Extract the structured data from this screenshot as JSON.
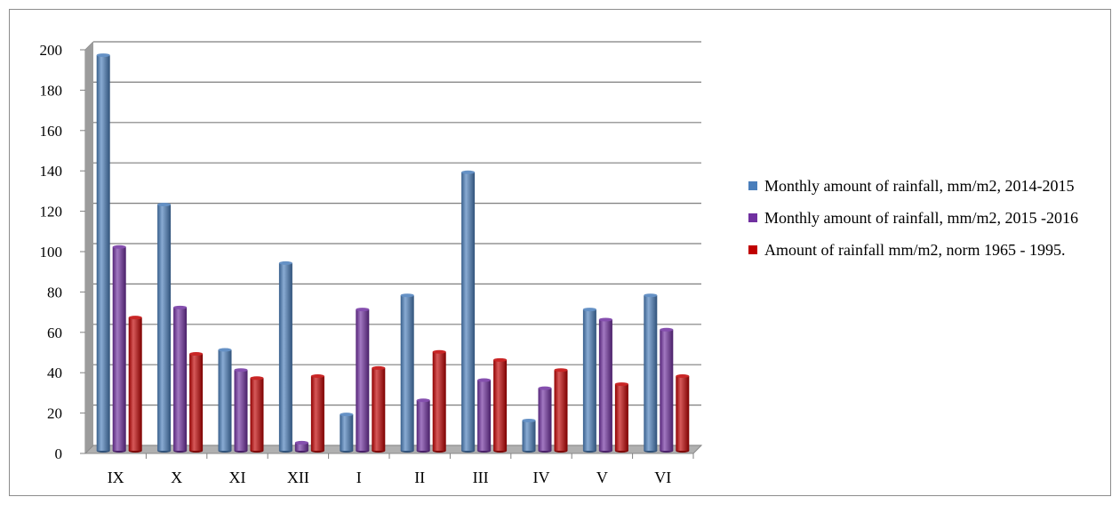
{
  "chart_data": {
    "type": "bar",
    "categories": [
      "IX",
      "X",
      "XI",
      "XII",
      "I",
      "II",
      "III",
      "IV",
      "V",
      "VI"
    ],
    "series": [
      {
        "name": "Monthly amount of rainfall, mm/m2, 2014-2015",
        "color": "#4a7ebb",
        "values": [
          196,
          122,
          50,
          93,
          18,
          77,
          138,
          15,
          70,
          77
        ]
      },
      {
        "name": "Monthly amount of rainfall, mm/m2, 2015 -2016",
        "color": "#7030a0",
        "values": [
          101,
          71,
          40,
          4,
          70,
          25,
          35,
          31,
          65,
          60
        ]
      },
      {
        "name": "Amount of rainfall mm/m2, norm 1965 - 1995.",
        "color": "#c00000",
        "values": [
          66,
          48,
          36,
          37,
          41,
          49,
          45,
          40,
          33,
          37
        ]
      }
    ],
    "ylim": [
      0,
      200
    ],
    "yticks": [
      0,
      20,
      40,
      60,
      80,
      100,
      120,
      140,
      160,
      180,
      200
    ],
    "grid": true,
    "legend_position": "right",
    "title": "",
    "xlabel": "",
    "ylabel": ""
  }
}
